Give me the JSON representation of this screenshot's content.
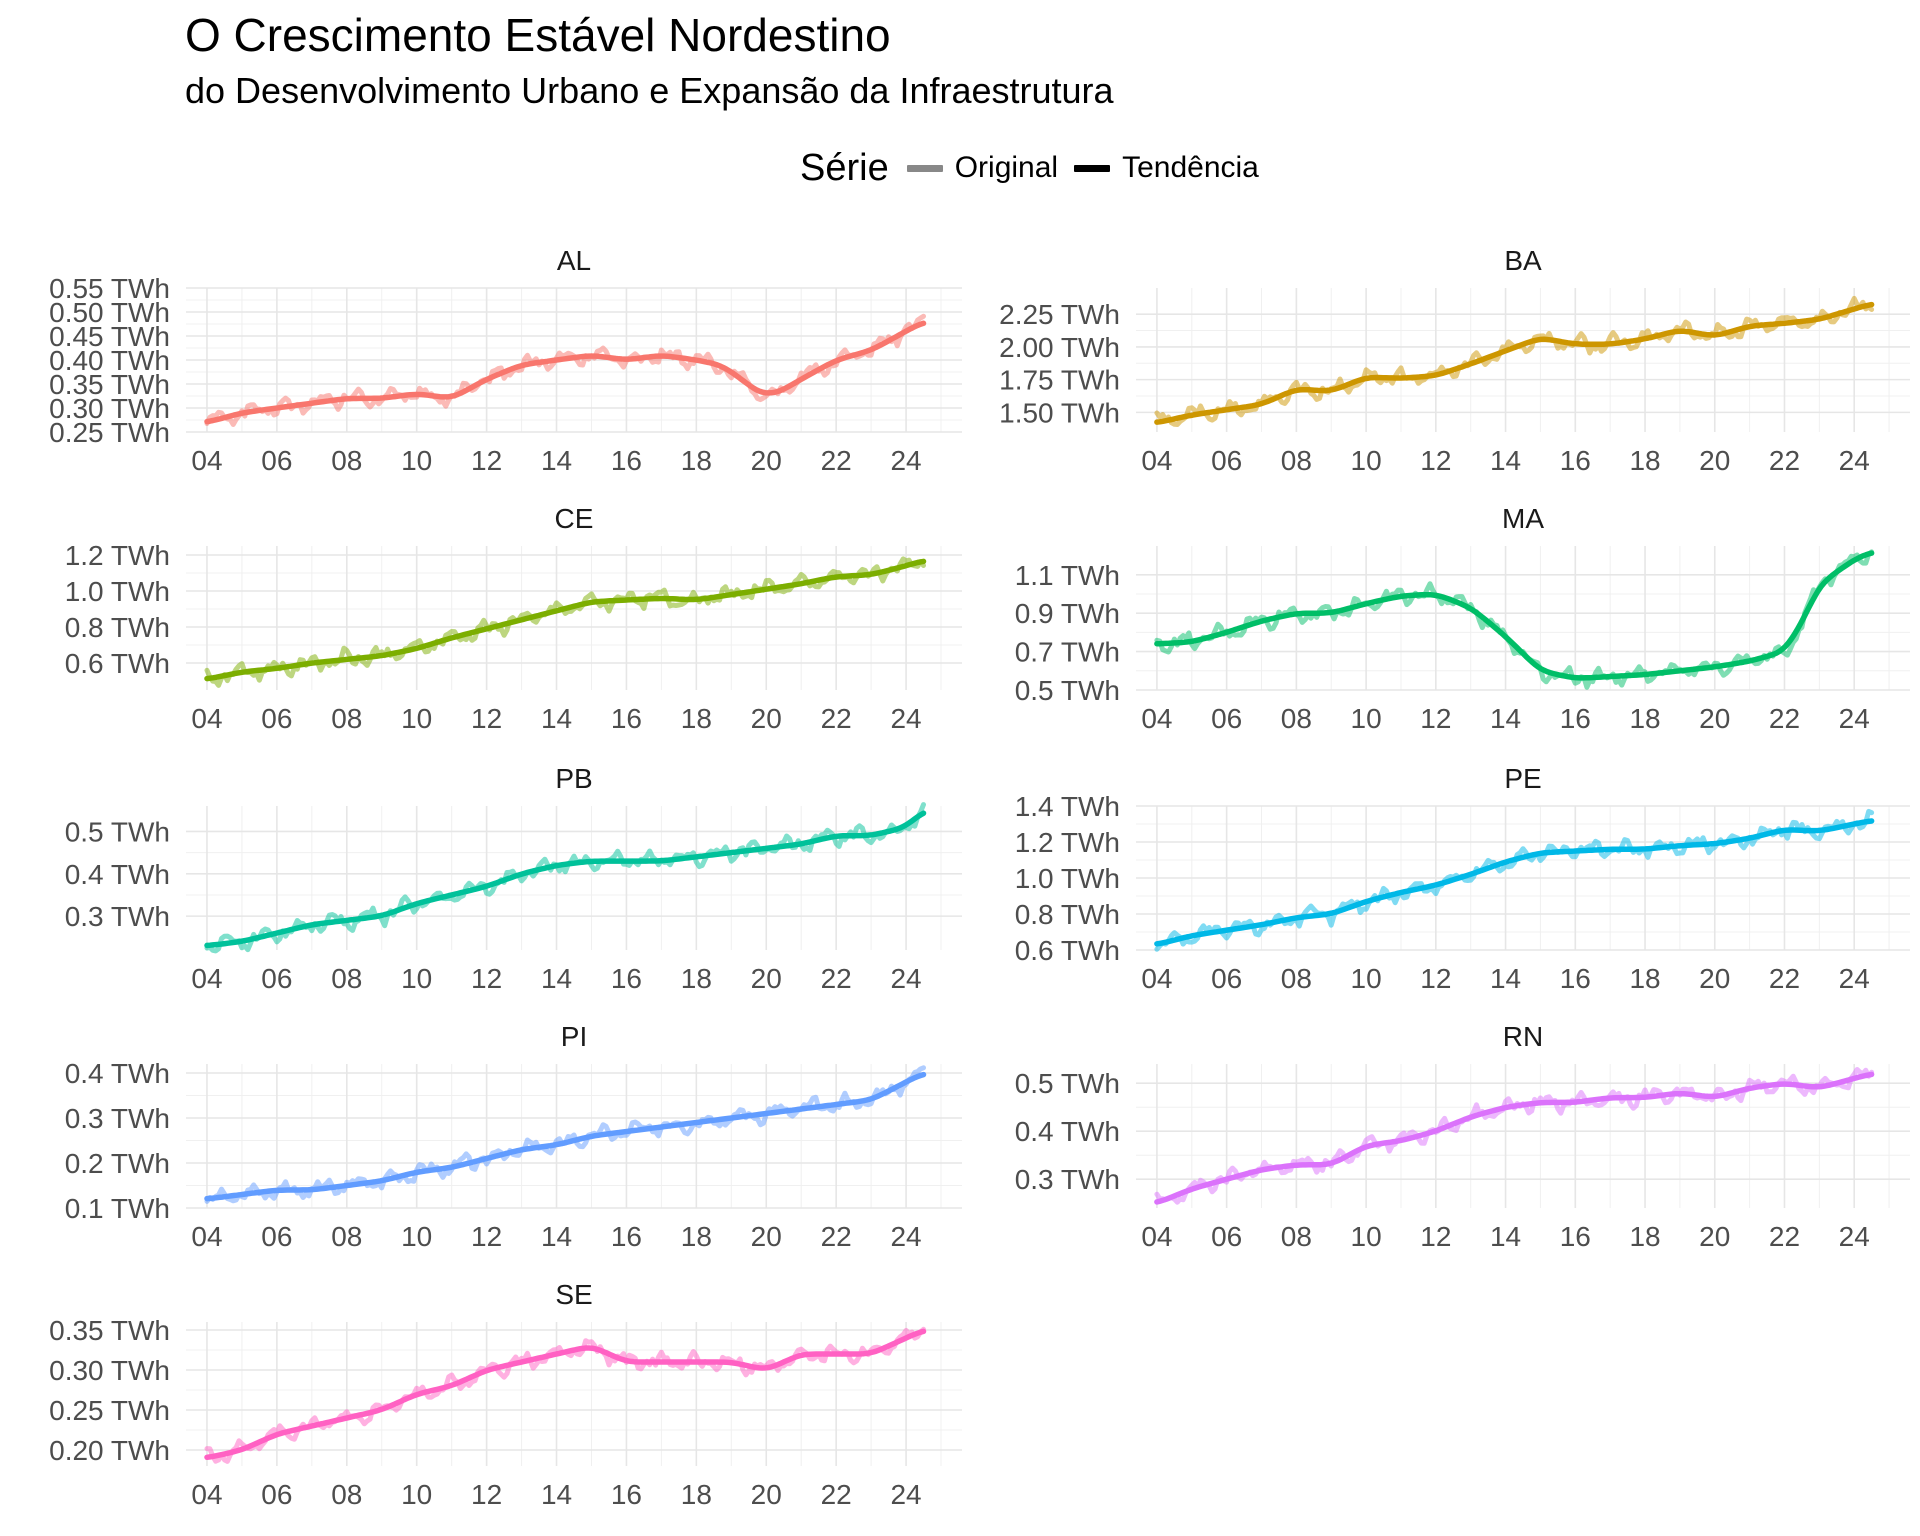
{
  "title": "O Crescimento Estável Nordestino",
  "subtitle": "do Desenvolvimento Urbano e Expansão da Infraestrutura",
  "legend": {
    "title": "Série",
    "items": [
      {
        "label": "Original",
        "color": "#888888"
      },
      {
        "label": "Tendência",
        "color": "#000000"
      }
    ]
  },
  "chart_data": {
    "type": "line",
    "facets": true,
    "x_unit": "ano",
    "x_ticks": [
      2004,
      2006,
      2008,
      2010,
      2012,
      2014,
      2016,
      2018,
      2020,
      2022,
      2024
    ],
    "x_tick_labels": [
      "04",
      "06",
      "08",
      "10",
      "12",
      "14",
      "16",
      "18",
      "20",
      "22",
      "24"
    ],
    "y_unit": "TWh",
    "legend_position": "top",
    "grid": true,
    "panels": [
      {
        "name": "AL",
        "color": "#F8766D",
        "ylim": [
          0.25,
          0.55
        ],
        "yticks": [
          0.25,
          0.3,
          0.35,
          0.4,
          0.45,
          0.5,
          0.55
        ],
        "ytick_labels": [
          "0.25 TWh",
          "0.30 TWh",
          "0.35 TWh",
          "0.40 TWh",
          "0.45 TWh",
          "0.50 TWh",
          "0.55 TWh"
        ],
        "trend": {
          "x": [
            2004,
            2005,
            2006,
            2007,
            2008,
            2009,
            2010,
            2011,
            2012,
            2013,
            2014,
            2015,
            2016,
            2017,
            2018,
            2018.7,
            2019.3,
            2019.8,
            2020.3,
            2021,
            2022,
            2023,
            2024,
            2024.5
          ],
          "y": [
            0.27,
            0.29,
            0.3,
            0.31,
            0.32,
            0.32,
            0.33,
            0.32,
            0.36,
            0.39,
            0.4,
            0.41,
            0.4,
            0.41,
            0.4,
            0.39,
            0.36,
            0.33,
            0.33,
            0.36,
            0.4,
            0.42,
            0.46,
            0.48
          ]
        }
      },
      {
        "name": "BA",
        "color": "#CD9600",
        "ylim": [
          1.35,
          2.45
        ],
        "yticks": [
          1.5,
          1.75,
          2.0,
          2.25
        ],
        "ytick_labels": [
          "1.50 TWh",
          "1.75 TWh",
          "2.00 TWh",
          "2.25 TWh"
        ],
        "trend": {
          "x": [
            2004,
            2005,
            2006,
            2007,
            2008,
            2009,
            2010,
            2011,
            2012,
            2013,
            2014,
            2015,
            2016,
            2017,
            2018,
            2019,
            2020,
            2021,
            2022,
            2023,
            2024,
            2024.5
          ],
          "y": [
            1.42,
            1.48,
            1.52,
            1.56,
            1.68,
            1.66,
            1.77,
            1.76,
            1.78,
            1.87,
            1.97,
            2.07,
            2.02,
            2.02,
            2.06,
            2.13,
            2.08,
            2.16,
            2.18,
            2.21,
            2.29,
            2.33
          ]
        }
      },
      {
        "name": "CE",
        "color": "#7CAE00",
        "ylim": [
          0.45,
          1.25
        ],
        "yticks": [
          0.6,
          0.8,
          1.0,
          1.2
        ],
        "ytick_labels": [
          "0.6 TWh",
          "0.8 TWh",
          "1.0 TWh",
          "1.2 TWh"
        ],
        "trend": {
          "x": [
            2004,
            2005,
            2006,
            2007,
            2008,
            2009,
            2010,
            2011,
            2012,
            2013,
            2014,
            2015,
            2016,
            2017,
            2018,
            2019,
            2020,
            2021,
            2022,
            2023,
            2024,
            2024.5
          ],
          "y": [
            0.51,
            0.55,
            0.57,
            0.6,
            0.62,
            0.64,
            0.68,
            0.74,
            0.79,
            0.84,
            0.89,
            0.94,
            0.95,
            0.96,
            0.95,
            0.98,
            1.01,
            1.04,
            1.08,
            1.09,
            1.14,
            1.17
          ]
        }
      },
      {
        "name": "MA",
        "color": "#00BE67",
        "ylim": [
          0.5,
          1.25
        ],
        "yticks": [
          0.5,
          0.7,
          0.9,
          1.1
        ],
        "ytick_labels": [
          "0.5 TWh",
          "0.7 TWh",
          "0.9 TWh",
          "1.1 TWh"
        ],
        "trend": {
          "x": [
            2004,
            2005,
            2006,
            2007,
            2008,
            2009,
            2010,
            2011,
            2012,
            2013,
            2014,
            2015,
            2016,
            2017,
            2018,
            2019,
            2020,
            2021,
            2022,
            2022.5,
            2023,
            2024,
            2024.5
          ],
          "y": [
            0.74,
            0.75,
            0.8,
            0.86,
            0.9,
            0.9,
            0.95,
            0.99,
            1.0,
            0.93,
            0.78,
            0.6,
            0.56,
            0.57,
            0.58,
            0.6,
            0.62,
            0.65,
            0.7,
            0.85,
            1.05,
            1.18,
            1.22
          ]
        }
      },
      {
        "name": "PB",
        "color": "#00C19A",
        "ylim": [
          0.22,
          0.56
        ],
        "yticks": [
          0.3,
          0.4,
          0.5
        ],
        "ytick_labels": [
          "0.3 TWh",
          "0.4 TWh",
          "0.5 TWh"
        ],
        "trend": {
          "x": [
            2004,
            2005,
            2006,
            2007,
            2008,
            2009,
            2010,
            2011,
            2012,
            2013,
            2014,
            2015,
            2016,
            2017,
            2018,
            2019,
            2020,
            2021,
            2022,
            2023,
            2024,
            2024.5
          ],
          "y": [
            0.23,
            0.24,
            0.26,
            0.28,
            0.29,
            0.3,
            0.33,
            0.35,
            0.37,
            0.4,
            0.42,
            0.43,
            0.43,
            0.43,
            0.44,
            0.45,
            0.46,
            0.47,
            0.49,
            0.49,
            0.51,
            0.55
          ]
        }
      },
      {
        "name": "PE",
        "color": "#00B8E7",
        "ylim": [
          0.6,
          1.4
        ],
        "yticks": [
          0.6,
          0.8,
          1.0,
          1.2,
          1.4
        ],
        "ytick_labels": [
          "0.6 TWh",
          "0.8 TWh",
          "1.0 TWh",
          "1.2 TWh",
          "1.4 TWh"
        ],
        "trend": {
          "x": [
            2004,
            2005,
            2006,
            2007,
            2008,
            2009,
            2010,
            2011,
            2012,
            2013,
            2014,
            2015,
            2016,
            2017,
            2018,
            2019,
            2020,
            2021,
            2022,
            2023,
            2024,
            2024.5
          ],
          "y": [
            0.63,
            0.68,
            0.71,
            0.74,
            0.78,
            0.8,
            0.87,
            0.92,
            0.96,
            1.02,
            1.09,
            1.14,
            1.15,
            1.16,
            1.16,
            1.18,
            1.19,
            1.22,
            1.27,
            1.26,
            1.3,
            1.32
          ]
        }
      },
      {
        "name": "PI",
        "color": "#619CFF",
        "ylim": [
          0.1,
          0.42
        ],
        "yticks": [
          0.1,
          0.2,
          0.3,
          0.4
        ],
        "ytick_labels": [
          "0.1 TWh",
          "0.2 TWh",
          "0.3 TWh",
          "0.4 TWh"
        ],
        "trend": {
          "x": [
            2004,
            2005,
            2006,
            2007,
            2008,
            2009,
            2010,
            2011,
            2012,
            2013,
            2014,
            2015,
            2016,
            2017,
            2018,
            2019,
            2020,
            2021,
            2022,
            2023,
            2024,
            2024.5
          ],
          "y": [
            0.12,
            0.13,
            0.14,
            0.14,
            0.15,
            0.16,
            0.18,
            0.19,
            0.21,
            0.23,
            0.24,
            0.26,
            0.27,
            0.28,
            0.29,
            0.3,
            0.31,
            0.32,
            0.33,
            0.34,
            0.38,
            0.4
          ]
        }
      },
      {
        "name": "RN",
        "color": "#DB72FB",
        "ylim": [
          0.24,
          0.54
        ],
        "yticks": [
          0.3,
          0.4,
          0.5
        ],
        "ytick_labels": [
          "0.3 TWh",
          "0.4 TWh",
          "0.5 TWh"
        ],
        "trend": {
          "x": [
            2004,
            2005,
            2006,
            2007,
            2008,
            2009,
            2010,
            2011,
            2012,
            2013,
            2014,
            2015,
            2016,
            2017,
            2018,
            2019,
            2020,
            2021,
            2022,
            2023,
            2024,
            2024.5
          ],
          "y": [
            0.25,
            0.28,
            0.3,
            0.32,
            0.33,
            0.33,
            0.37,
            0.38,
            0.4,
            0.43,
            0.45,
            0.46,
            0.46,
            0.47,
            0.47,
            0.48,
            0.47,
            0.49,
            0.5,
            0.49,
            0.51,
            0.52
          ]
        }
      },
      {
        "name": "SE",
        "color": "#FF61C3",
        "ylim": [
          0.18,
          0.36
        ],
        "yticks": [
          0.2,
          0.25,
          0.3,
          0.35
        ],
        "ytick_labels": [
          "0.20 TWh",
          "0.25 TWh",
          "0.30 TWh",
          "0.35 TWh"
        ],
        "trend": {
          "x": [
            2004,
            2005,
            2006,
            2007,
            2008,
            2009,
            2010,
            2011,
            2012,
            2013,
            2014,
            2015,
            2016,
            2017,
            2018,
            2019,
            2020,
            2021,
            2022,
            2023,
            2024,
            2024.5
          ],
          "y": [
            0.19,
            0.2,
            0.22,
            0.23,
            0.24,
            0.25,
            0.27,
            0.28,
            0.3,
            0.31,
            0.32,
            0.33,
            0.31,
            0.31,
            0.31,
            0.31,
            0.3,
            0.32,
            0.32,
            0.32,
            0.34,
            0.35
          ]
        }
      }
    ]
  }
}
